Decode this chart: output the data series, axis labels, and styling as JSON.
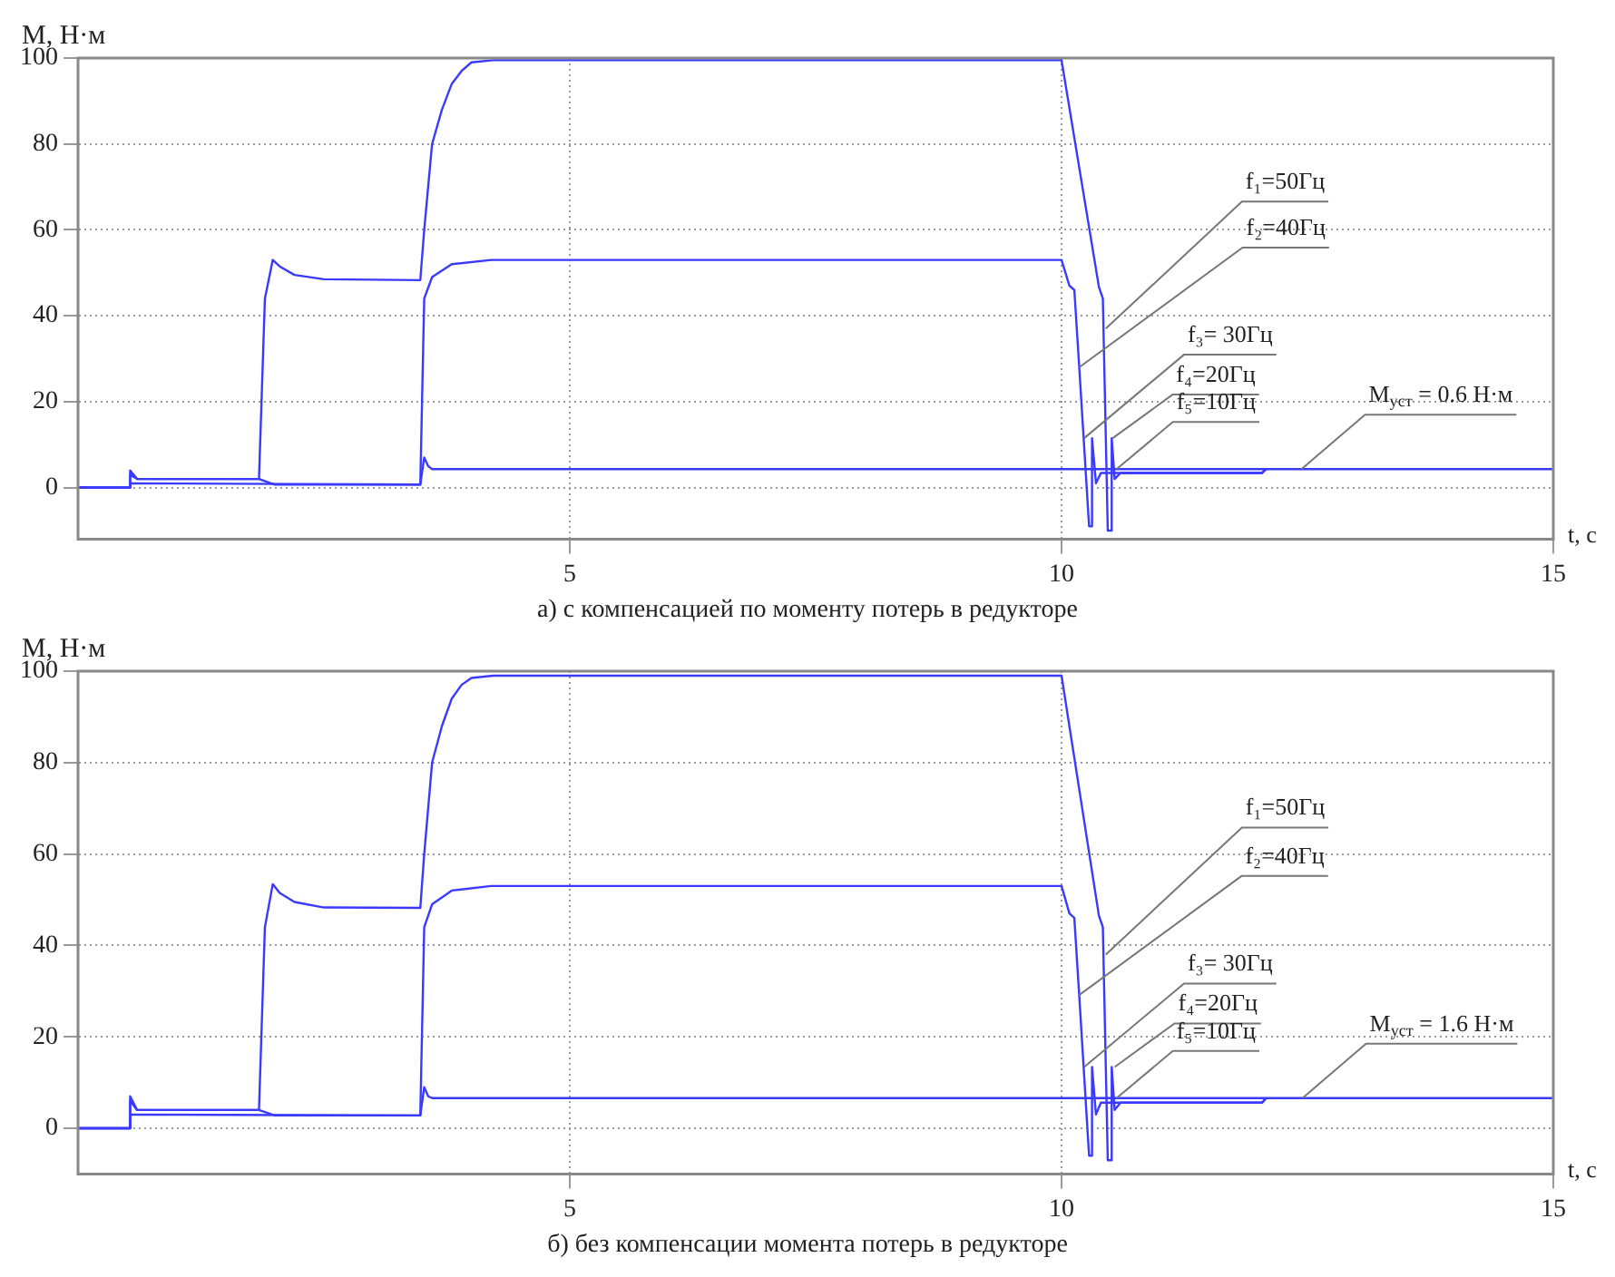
{
  "chart_data": [
    {
      "type": "line",
      "title": "а) с компенсацией по моменту потерь в редукторе",
      "xlabel": "t, с",
      "ylabel": "M, Н·м",
      "xlim": [
        0,
        15
      ],
      "ylim": [
        -12,
        100
      ],
      "xticks": [
        5,
        10,
        15
      ],
      "yticks": [
        0,
        20,
        40,
        60,
        80,
        100
      ],
      "grid": true,
      "marker": "none",
      "series": [
        {
          "color": "#3a3aff",
          "x": [
            0,
            0.52,
            0.53,
            0.6,
            1.84,
            1.9,
            1.98,
            2.05,
            2.2,
            2.5,
            3.48,
            3.52,
            3.6,
            3.7,
            3.8,
            3.9,
            4.0,
            4.22,
            10.0,
            10.38,
            10.42,
            10.47,
            10.5,
            10.51,
            10.54,
            10.6,
            12.04,
            12.08
          ],
          "values": [
            0,
            0,
            4,
            2,
            2,
            44,
            53,
            51.5,
            49.5,
            48.5,
            48.3,
            60,
            80,
            88,
            94,
            97,
            99,
            99.5,
            99.5,
            46.7,
            44,
            -10,
            -10,
            11.5,
            2,
            3.4,
            3.4,
            4.3
          ]
        },
        {
          "color": "#3a3aff",
          "x": [
            0,
            0.52,
            0.53,
            0.6,
            1.84,
            2.0,
            3.48,
            3.52,
            3.6,
            3.8,
            4.2,
            10.0,
            10.08,
            10.13,
            10.18,
            10.28,
            10.3,
            10.31,
            10.35,
            10.4,
            12.04,
            12.08
          ],
          "values": [
            0,
            0,
            3,
            2,
            2,
            0.7,
            0.7,
            44,
            49,
            52,
            53,
            53,
            47,
            46,
            28,
            -9,
            -9,
            11.5,
            1,
            3.4,
            3.4,
            4.3
          ]
        },
        {
          "color": "#3a3aff",
          "x": [
            0,
            0.52,
            0.53,
            3.48,
            3.52,
            3.56,
            3.6,
            15
          ],
          "values": [
            0,
            0,
            1,
            0.7,
            7,
            5,
            4.3,
            4.3
          ]
        }
      ],
      "annotations": [
        {
          "text": "f₁=50Гц",
          "x": 10.45,
          "y": 37
        },
        {
          "text": "f₂=40Гц",
          "x": 10.18,
          "y": 28
        },
        {
          "text": "f₃= 30Гц",
          "x": 10.23,
          "y": 11.5
        },
        {
          "text": "f₄=20Гц",
          "x": 10.52,
          "y": 11.5
        },
        {
          "text": "f₅=10Гц",
          "x": 10.56,
          "y": 4.3
        },
        {
          "text": "M$_{уст}$ = 0.6 Н·м",
          "x": 12.44,
          "y": 4.3
        }
      ]
    },
    {
      "type": "line",
      "title": "б) без компенсации момента потерь в редукторе",
      "xlabel": "t, с",
      "ylabel": "M, Н·м",
      "xlim": [
        0,
        15
      ],
      "ylim": [
        -10,
        100
      ],
      "xticks": [
        5,
        10,
        15
      ],
      "yticks": [
        0,
        20,
        40,
        60,
        80,
        100
      ],
      "grid": true,
      "marker": "none",
      "series": [
        {
          "color": "#3a3aff",
          "x": [
            0,
            0.52,
            0.53,
            0.6,
            1.84,
            1.9,
            1.98,
            2.05,
            2.2,
            2.5,
            3.48,
            3.52,
            3.6,
            3.7,
            3.8,
            3.9,
            4.0,
            4.22,
            10.0,
            10.38,
            10.42,
            10.47,
            10.5,
            10.51,
            10.54,
            10.6,
            12.04,
            12.08
          ],
          "values": [
            0,
            0,
            7,
            4,
            4,
            44,
            53.4,
            51.5,
            49.5,
            48.3,
            48.2,
            60,
            80,
            88,
            94,
            97,
            98.5,
            99,
            99,
            46.5,
            44,
            -7,
            -7,
            13.4,
            4,
            5.6,
            5.6,
            6.6
          ]
        },
        {
          "color": "#3a3aff",
          "x": [
            0,
            0.52,
            0.53,
            0.6,
            1.84,
            2.0,
            3.48,
            3.52,
            3.6,
            3.8,
            4.2,
            10.0,
            10.08,
            10.13,
            10.18,
            10.28,
            10.3,
            10.31,
            10.35,
            10.4,
            12.04,
            12.08
          ],
          "values": [
            0,
            0,
            6,
            4,
            4,
            2.8,
            2.8,
            44,
            49,
            52,
            53,
            53,
            47,
            46,
            29,
            -6,
            -6,
            13.4,
            3,
            5.6,
            5.6,
            6.6
          ]
        },
        {
          "color": "#3a3aff",
          "x": [
            0,
            0.52,
            0.53,
            3.48,
            3.52,
            3.56,
            3.6,
            15
          ],
          "values": [
            0,
            0,
            3,
            2.8,
            9,
            7,
            6.6,
            6.6
          ]
        }
      ],
      "annotations": [
        {
          "text": "f₁=50Гц",
          "x": 10.45,
          "y": 38
        },
        {
          "text": "f₂=40Гц",
          "x": 10.17,
          "y": 29
        },
        {
          "text": "f₃= 30Гц",
          "x": 10.23,
          "y": 13.4
        },
        {
          "text": "f₄=20Гц",
          "x": 10.54,
          "y": 13.4
        },
        {
          "text": "f₅=10Гц",
          "x": 10.56,
          "y": 6.6
        },
        {
          "text": "M$_{уст}$ = 1.6 Н·м",
          "x": 12.45,
          "y": 6.6
        }
      ]
    }
  ]
}
